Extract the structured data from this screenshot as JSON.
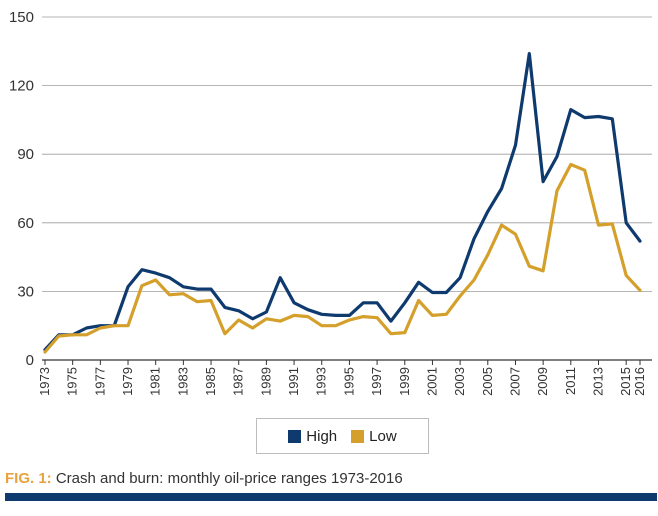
{
  "chart_data": {
    "type": "line",
    "title": "",
    "xlabel": "",
    "ylabel": "",
    "ylim": [
      0,
      150
    ],
    "yticks": [
      0,
      30,
      60,
      90,
      120,
      150
    ],
    "xlim": [
      1973,
      2016
    ],
    "xtick_labels": [
      "1973",
      "1975",
      "1977",
      "1979",
      "1981",
      "1983",
      "1985",
      "1987",
      "1989",
      "1991",
      "1993",
      "1995",
      "1997",
      "1999",
      "2001",
      "2003",
      "2005",
      "2007",
      "2009",
      "2011",
      "2013",
      "2015",
      "2016"
    ],
    "grid": true,
    "legend_placement": "bottom",
    "series": [
      {
        "name": "High",
        "color": "#0f3a6e",
        "x": [
          1973,
          1974,
          1975,
          1976,
          1977,
          1978,
          1979,
          1980,
          1981,
          1982,
          1983,
          1984,
          1985,
          1986,
          1987,
          1988,
          1989,
          1990,
          1991,
          1992,
          1993,
          1994,
          1995,
          1996,
          1997,
          1998,
          1999,
          2000,
          2001,
          2002,
          2003,
          2004,
          2005,
          2006,
          2007,
          2008,
          2009,
          2010,
          2011,
          2012,
          2013,
          2014,
          2015,
          2016
        ],
        "values": [
          4.5,
          11,
          11,
          14,
          15,
          15,
          32,
          39.5,
          38,
          36,
          32,
          31,
          31,
          23,
          21.5,
          18,
          21,
          36,
          25,
          22,
          20,
          19.5,
          19.5,
          25,
          25,
          17,
          25,
          34,
          29.5,
          29.5,
          36,
          53,
          65,
          75,
          94,
          134,
          78,
          89,
          109.5,
          106,
          106.5,
          105.5,
          60,
          52
        ]
      },
      {
        "name": "Low",
        "color": "#d4a02b",
        "x": [
          1973,
          1974,
          1975,
          1976,
          1977,
          1978,
          1979,
          1980,
          1981,
          1982,
          1983,
          1984,
          1985,
          1986,
          1987,
          1988,
          1989,
          1990,
          1991,
          1992,
          1993,
          1994,
          1995,
          1996,
          1997,
          1998,
          1999,
          2000,
          2001,
          2002,
          2003,
          2004,
          2005,
          2006,
          2007,
          2008,
          2009,
          2010,
          2011,
          2012,
          2013,
          2014,
          2015,
          2016
        ],
        "values": [
          3.5,
          10.5,
          11,
          11,
          14,
          15,
          15,
          32.5,
          35,
          28.5,
          29,
          25.5,
          26,
          11.5,
          17.5,
          14,
          18,
          17,
          19.5,
          19,
          15,
          15,
          17.5,
          19,
          18.5,
          11.5,
          12,
          26,
          19.5,
          20,
          28,
          35,
          46,
          59,
          55,
          41,
          39,
          74,
          85.5,
          83,
          59,
          59.5,
          37,
          30.5
        ]
      }
    ]
  },
  "legend": {
    "high_label": "High",
    "low_label": "Low"
  },
  "caption": {
    "label": "FIG. 1:",
    "text": " Crash and burn: monthly oil-price ranges 1973-2016"
  },
  "colors": {
    "gridline": "#9e9e9e",
    "axis": "#333333",
    "caption_label": "#e8a23d",
    "bottom_bar": "#0f3a6e"
  }
}
